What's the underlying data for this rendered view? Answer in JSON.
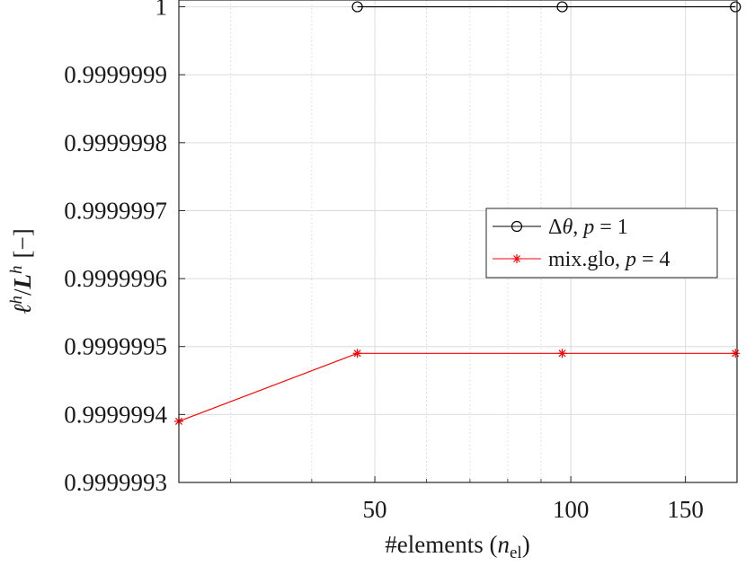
{
  "chart_data": {
    "type": "line",
    "x_scale": "log",
    "grid": true,
    "legend_position": "right-center",
    "xlim": [
      25,
      180
    ],
    "ylim": [
      0.9999993,
      1.00000001
    ],
    "x_ticks": [
      {
        "value": 50,
        "label": "50"
      },
      {
        "value": 100,
        "label": "100"
      },
      {
        "value": 150,
        "label": "150"
      }
    ],
    "y_ticks": [
      {
        "value": 0.9999993,
        "label": "0.9999993"
      },
      {
        "value": 0.9999994,
        "label": "0.9999994"
      },
      {
        "value": 0.9999995,
        "label": "0.9999995"
      },
      {
        "value": 0.9999996,
        "label": "0.9999996"
      },
      {
        "value": 0.9999997,
        "label": "0.9999997"
      },
      {
        "value": 0.9999998,
        "label": "0.9999998"
      },
      {
        "value": 0.9999999,
        "label": "0.9999999"
      },
      {
        "value": 1,
        "label": "1"
      }
    ],
    "xlabel": {
      "prefix": "#elements (",
      "var": "n",
      "sub": "el",
      "suffix": ")"
    },
    "ylabel": {
      "num_var": "ℓ",
      "num_sup": "h",
      "slash": "/",
      "den_var": "L",
      "den_sup": "h",
      "unit": "[−]"
    },
    "series": [
      {
        "name": "Δθ, p = 1",
        "legend": {
          "pre": "Δ",
          "sym": "θ",
          "mid": ", ",
          "var": "p",
          "eq": " = 1"
        },
        "color": "#000000",
        "marker": "circle",
        "x": [
          47,
          97,
          179
        ],
        "y": [
          1,
          1,
          1
        ]
      },
      {
        "name": "mix.glo, p = 4",
        "legend": {
          "pre": "mix.glo",
          "sym": "",
          "mid": ", ",
          "var": "p",
          "eq": " = 4"
        },
        "color": "#ff0000",
        "marker": "asterisk",
        "x": [
          25,
          47,
          97,
          179
        ],
        "y": [
          0.99999939,
          0.99999949,
          0.99999949,
          0.99999949
        ]
      }
    ]
  }
}
